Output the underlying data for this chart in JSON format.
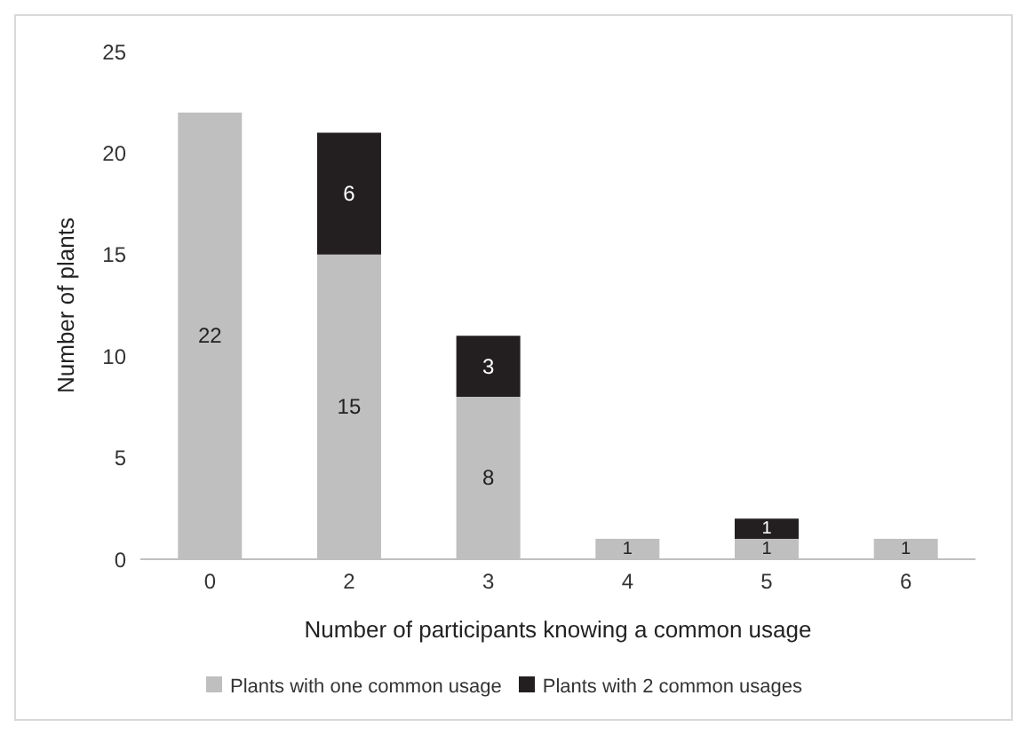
{
  "chart_data": {
    "type": "bar",
    "stacked": true,
    "xlabel": "Number of participants knowing a common usage",
    "ylabel": "Number of plants",
    "categories": [
      "0",
      "2",
      "3",
      "4",
      "5",
      "6"
    ],
    "series": [
      {
        "name": "Plants with one common usage",
        "color": "#bfbfbf",
        "values": [
          22,
          15,
          8,
          1,
          1,
          1
        ]
      },
      {
        "name": "Plants with 2 common usages",
        "color": "#231f20",
        "values": [
          null,
          6,
          3,
          null,
          1,
          null
        ]
      }
    ],
    "ylim": [
      0,
      25
    ],
    "yticks": [
      0,
      5,
      10,
      15,
      20,
      25
    ],
    "grid": false,
    "legend": "bottom",
    "data_labels": true
  }
}
